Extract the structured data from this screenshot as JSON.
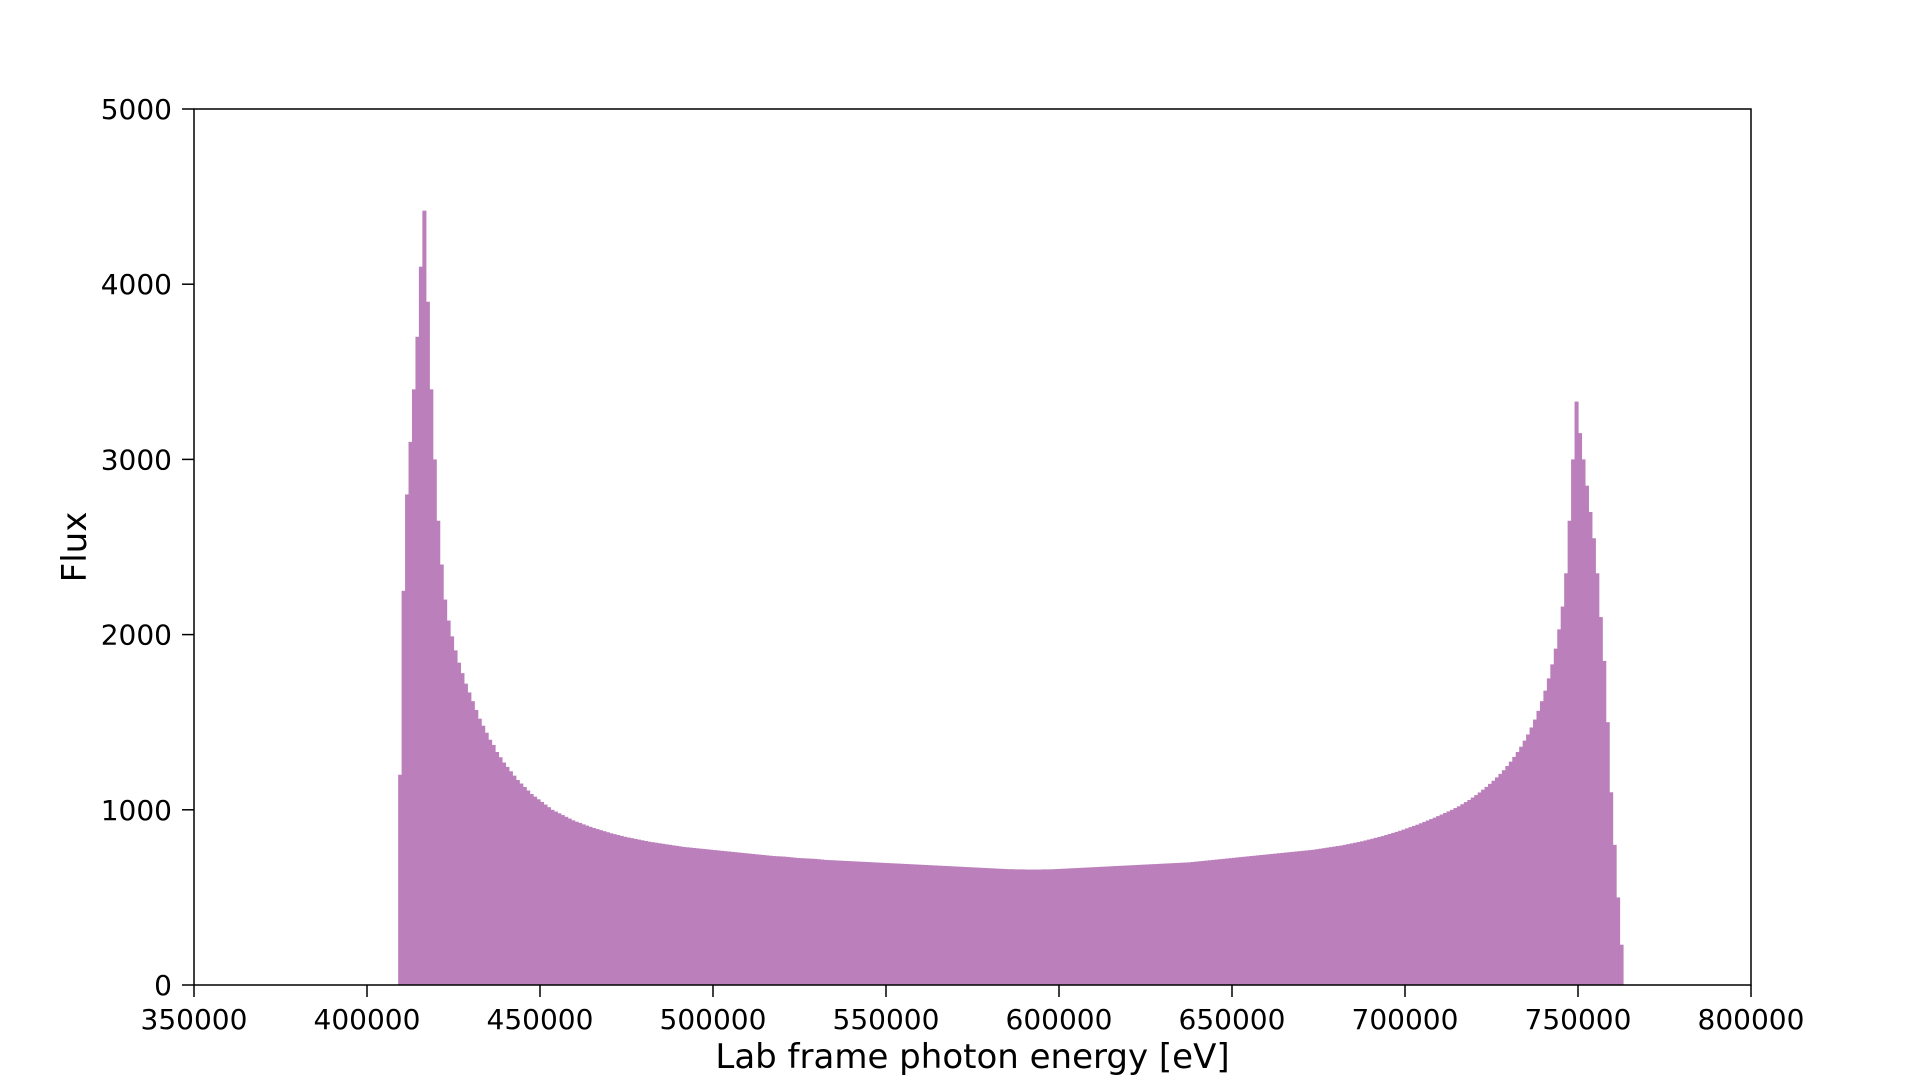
{
  "chart_data": {
    "type": "bar",
    "title": "",
    "xlabel": "Lab frame photon energy [eV]",
    "ylabel": "Flux",
    "xlim": [
      350000,
      800000
    ],
    "ylim": [
      0,
      5000
    ],
    "xticks": [
      350000,
      400000,
      450000,
      500000,
      550000,
      600000,
      650000,
      700000,
      750000,
      800000
    ],
    "yticks": [
      0,
      1000,
      2000,
      3000,
      4000,
      5000
    ],
    "xtick_labels": [
      "350000",
      "400000",
      "450000",
      "500000",
      "550000",
      "600000",
      "650000",
      "700000",
      "750000",
      "800000"
    ],
    "ytick_labels": [
      "0",
      "1000",
      "2000",
      "3000",
      "4000",
      "5000"
    ],
    "grid": false,
    "legend": "none",
    "bar_color": "#bb80bb",
    "series": [
      {
        "bin_width": 1000,
        "x": [
          409500,
          410500,
          411500,
          412500,
          413500,
          414500,
          415500,
          416500,
          417500,
          418500,
          419500,
          420500,
          421500,
          422500,
          423500,
          424500,
          425500,
          426500,
          427500,
          428500,
          429500,
          430500,
          431500,
          432500,
          433500,
          434500,
          435500,
          436500,
          437500,
          438500,
          439500,
          440500,
          441500,
          442500,
          443500,
          444500,
          445500,
          446500,
          447500,
          448500,
          449500,
          450500,
          451500,
          452500,
          453500,
          454500,
          455500,
          456500,
          457500,
          458500,
          459500,
          460500,
          461500,
          462500,
          463500,
          464500,
          465500,
          466500,
          467500,
          468500,
          469500,
          470500,
          471500,
          472500,
          473500,
          474500,
          475500,
          476500,
          477500,
          478500,
          479500,
          480500,
          481500,
          482500,
          483500,
          484500,
          485500,
          486500,
          487500,
          488500,
          489500,
          490500,
          491500,
          492500,
          493500,
          494500,
          495500,
          496500,
          497500,
          498500,
          499500,
          500500,
          501500,
          502500,
          503500,
          504500,
          505500,
          506500,
          507500,
          508500,
          509500,
          510500,
          511500,
          512500,
          513500,
          514500,
          515500,
          516500,
          517500,
          518500,
          519500,
          520500,
          521500,
          522500,
          523500,
          524500,
          525500,
          526500,
          527500,
          528500,
          529500,
          530500,
          531500,
          532500,
          533500,
          534500,
          535500,
          536500,
          537500,
          538500,
          539500,
          540500,
          541500,
          542500,
          543500,
          544500,
          545500,
          546500,
          547500,
          548500,
          549500,
          550500,
          551500,
          552500,
          553500,
          554500,
          555500,
          556500,
          557500,
          558500,
          559500,
          560500,
          561500,
          562500,
          563500,
          564500,
          565500,
          566500,
          567500,
          568500,
          569500,
          570500,
          571500,
          572500,
          573500,
          574500,
          575500,
          576500,
          577500,
          578500,
          579500,
          580500,
          581500,
          582500,
          583500,
          584500,
          585500,
          586500,
          587500,
          588500,
          589500,
          590500,
          591500,
          592500,
          593500,
          594500,
          595500,
          596500,
          597500,
          598500,
          599500,
          600500,
          601500,
          602500,
          603500,
          604500,
          605500,
          606500,
          607500,
          608500,
          609500,
          610500,
          611500,
          612500,
          613500,
          614500,
          615500,
          616500,
          617500,
          618500,
          619500,
          620500,
          621500,
          622500,
          623500,
          624500,
          625500,
          626500,
          627500,
          628500,
          629500,
          630500,
          631500,
          632500,
          633500,
          634500,
          635500,
          636500,
          637500,
          638500,
          639500,
          640500,
          641500,
          642500,
          643500,
          644500,
          645500,
          646500,
          647500,
          648500,
          649500,
          650500,
          651500,
          652500,
          653500,
          654500,
          655500,
          656500,
          657500,
          658500,
          659500,
          660500,
          661500,
          662500,
          663500,
          664500,
          665500,
          666500,
          667500,
          668500,
          669500,
          670500,
          671500,
          672500,
          673500,
          674500,
          675500,
          676500,
          677500,
          678500,
          679500,
          680500,
          681500,
          682500,
          683500,
          684500,
          685500,
          686500,
          687500,
          688500,
          689500,
          690500,
          691500,
          692500,
          693500,
          694500,
          695500,
          696500,
          697500,
          698500,
          699500,
          700500,
          701500,
          702500,
          703500,
          704500,
          705500,
          706500,
          707500,
          708500,
          709500,
          710500,
          711500,
          712500,
          713500,
          714500,
          715500,
          716500,
          717500,
          718500,
          719500,
          720500,
          721500,
          722500,
          723500,
          724500,
          725500,
          726500,
          727500,
          728500,
          729500,
          730500,
          731500,
          732500,
          733500,
          734500,
          735500,
          736500,
          737500,
          738500,
          739500,
          740500,
          741500,
          742500,
          743500,
          744500,
          745500,
          746500,
          747500,
          748500,
          749500,
          750500,
          751500,
          752500,
          753500,
          754500,
          755500,
          756500,
          757500,
          758500,
          759500,
          760500,
          761500,
          762500
        ],
        "values": [
          1200,
          2250,
          2800,
          3100,
          3400,
          3700,
          4100,
          4420,
          3900,
          3400,
          3000,
          2650,
          2400,
          2200,
          2080,
          1990,
          1910,
          1840,
          1780,
          1720,
          1670,
          1620,
          1570,
          1520,
          1480,
          1440,
          1400,
          1370,
          1330,
          1300,
          1270,
          1245,
          1220,
          1195,
          1170,
          1150,
          1130,
          1110,
          1090,
          1075,
          1060,
          1045,
          1030,
          1015,
          1000,
          990,
          980,
          970,
          960,
          950,
          940,
          932,
          925,
          917,
          910,
          903,
          896,
          890,
          884,
          878,
          872,
          866,
          861,
          856,
          851,
          846,
          842,
          838,
          834,
          830,
          826,
          822,
          818,
          815,
          812,
          809,
          806,
          803,
          800,
          797,
          794,
          791,
          788,
          786,
          784,
          782,
          780,
          778,
          776,
          774,
          772,
          770,
          768,
          766,
          764,
          762,
          760,
          758,
          756,
          754,
          752,
          750,
          748,
          746,
          744,
          742,
          740,
          738,
          736,
          735,
          734,
          733,
          731,
          729,
          727,
          725,
          724,
          723,
          722,
          721,
          720,
          718,
          716,
          714,
          713,
          712,
          711,
          710,
          709,
          708,
          707,
          706,
          705,
          704,
          703,
          702,
          701,
          700,
          699,
          698,
          697,
          696,
          695,
          694,
          693,
          692,
          691,
          690,
          689,
          688,
          687,
          686,
          685,
          684,
          683,
          682,
          681,
          680,
          679,
          678,
          677,
          676,
          675,
          674,
          673,
          672,
          671,
          670,
          669,
          668,
          667,
          666,
          665,
          664,
          663,
          662,
          661,
          661,
          660,
          660,
          660,
          659,
          659,
          659,
          659,
          659,
          660,
          660,
          660,
          661,
          662,
          663,
          664,
          665,
          666,
          667,
          668,
          669,
          670,
          671,
          672,
          673,
          674,
          675,
          676,
          677,
          678,
          679,
          680,
          681,
          682,
          683,
          684,
          685,
          686,
          687,
          688,
          689,
          690,
          691,
          692,
          693,
          694,
          695,
          696,
          697,
          698,
          699,
          700,
          702,
          704,
          706,
          708,
          710,
          712,
          714,
          716,
          718,
          720,
          722,
          724,
          726,
          728,
          730,
          732,
          734,
          736,
          738,
          740,
          742,
          744,
          746,
          748,
          750,
          752,
          754,
          756,
          758,
          760,
          762,
          764,
          766,
          768,
          770,
          772,
          775,
          778,
          781,
          784,
          787,
          790,
          793,
          796,
          800,
          804,
          808,
          812,
          816,
          820,
          825,
          830,
          835,
          840,
          845,
          850,
          856,
          862,
          868,
          874,
          880,
          887,
          894,
          901,
          908,
          915,
          923,
          931,
          939,
          947,
          955,
          964,
          973,
          982,
          991,
          1000,
          1010,
          1020,
          1032,
          1044,
          1056,
          1070,
          1084,
          1099,
          1115,
          1131,
          1148,
          1166,
          1185,
          1205,
          1226,
          1250,
          1275,
          1302,
          1330,
          1360,
          1395,
          1430,
          1470,
          1515,
          1565,
          1620,
          1680,
          1750,
          1830,
          1920,
          2030,
          2160,
          2350,
          2650,
          3000,
          3330,
          3150,
          3000,
          2850,
          2700,
          2550,
          2350,
          2100,
          1850,
          1500,
          1100,
          800,
          500,
          230
        ]
      }
    ]
  }
}
